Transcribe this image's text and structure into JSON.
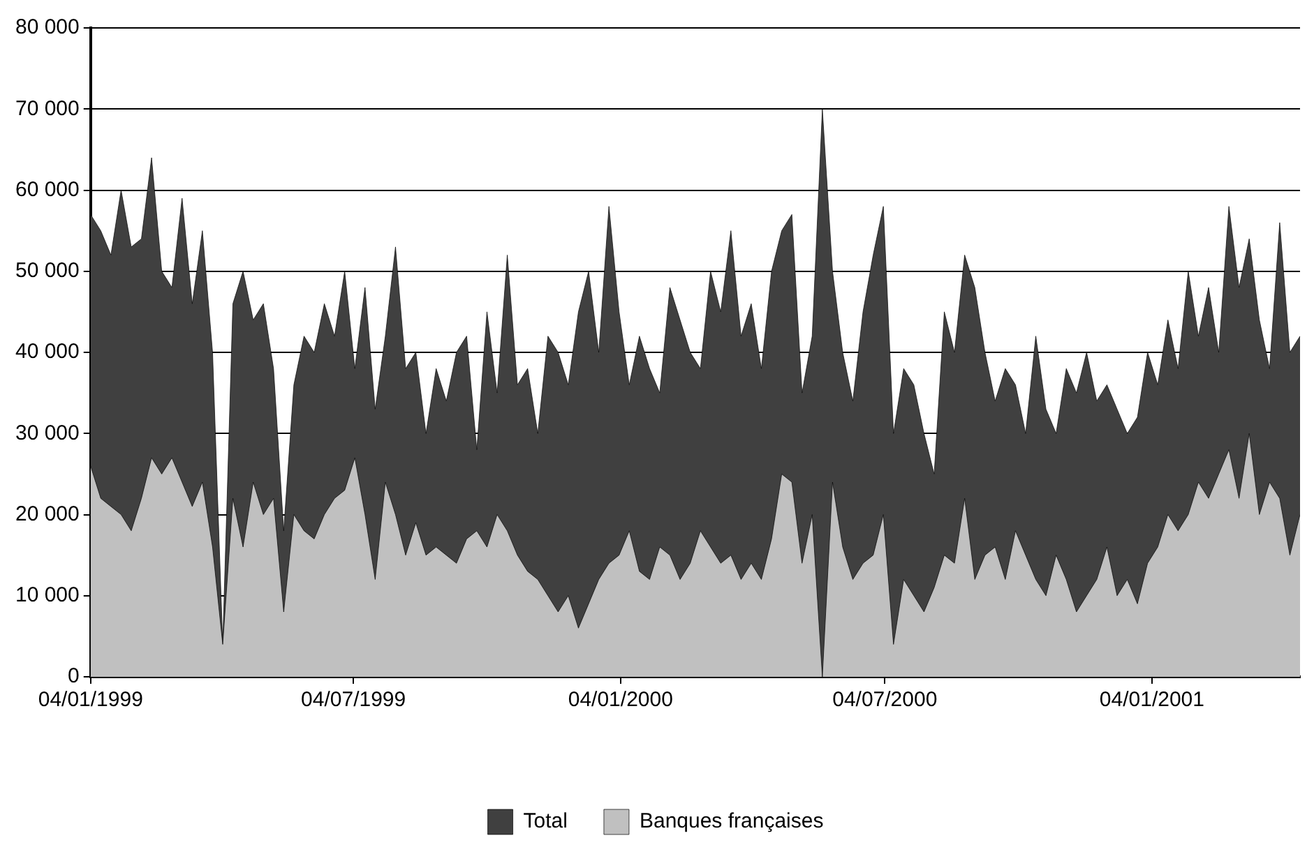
{
  "chart_data": {
    "type": "area",
    "x": [
      "1999-01-04",
      "1999-01-11",
      "1999-01-18",
      "1999-01-25",
      "1999-02-01",
      "1999-02-08",
      "1999-02-15",
      "1999-02-22",
      "1999-03-01",
      "1999-03-08",
      "1999-03-15",
      "1999-03-22",
      "1999-03-29",
      "1999-04-05",
      "1999-04-12",
      "1999-04-19",
      "1999-04-26",
      "1999-05-03",
      "1999-05-10",
      "1999-05-17",
      "1999-05-24",
      "1999-05-31",
      "1999-06-07",
      "1999-06-14",
      "1999-06-21",
      "1999-06-28",
      "1999-07-05",
      "1999-07-12",
      "1999-07-19",
      "1999-07-26",
      "1999-08-02",
      "1999-08-09",
      "1999-08-16",
      "1999-08-23",
      "1999-08-30",
      "1999-09-06",
      "1999-09-13",
      "1999-09-20",
      "1999-09-27",
      "1999-10-04",
      "1999-10-11",
      "1999-10-18",
      "1999-10-25",
      "1999-11-01",
      "1999-11-08",
      "1999-11-15",
      "1999-11-22",
      "1999-11-29",
      "1999-12-06",
      "1999-12-13",
      "1999-12-20",
      "1999-12-27",
      "2000-01-03",
      "2000-01-10",
      "2000-01-17",
      "2000-01-24",
      "2000-01-31",
      "2000-02-07",
      "2000-02-14",
      "2000-02-21",
      "2000-02-28",
      "2000-03-06",
      "2000-03-13",
      "2000-03-20",
      "2000-03-27",
      "2000-04-03",
      "2000-04-10",
      "2000-04-17",
      "2000-04-24",
      "2000-05-01",
      "2000-05-08",
      "2000-05-15",
      "2000-05-22",
      "2000-05-29",
      "2000-06-05",
      "2000-06-12",
      "2000-06-19",
      "2000-06-26",
      "2000-07-03",
      "2000-07-10",
      "2000-07-17",
      "2000-07-24",
      "2000-07-31",
      "2000-08-07",
      "2000-08-14",
      "2000-08-21",
      "2000-08-28",
      "2000-09-04",
      "2000-09-11",
      "2000-09-18",
      "2000-09-25",
      "2000-10-02",
      "2000-10-09",
      "2000-10-16",
      "2000-10-23",
      "2000-10-30",
      "2000-11-06",
      "2000-11-13",
      "2000-11-20",
      "2000-11-27",
      "2000-12-04",
      "2000-12-11",
      "2000-12-18",
      "2000-12-25",
      "2001-01-01",
      "2001-01-08",
      "2001-01-15",
      "2001-01-22",
      "2001-01-29",
      "2001-02-05",
      "2001-02-12",
      "2001-02-19",
      "2001-02-26",
      "2001-03-05",
      "2001-03-12",
      "2001-03-19",
      "2001-03-26",
      "2001-04-02",
      "2001-04-09",
      "2001-04-16"
    ],
    "series": [
      {
        "name": "Total",
        "color": "#404040",
        "values": [
          57000,
          55000,
          52000,
          60000,
          53000,
          54000,
          64000,
          50000,
          48000,
          59000,
          46000,
          55000,
          40000,
          4000,
          46000,
          50000,
          44000,
          46000,
          38000,
          18000,
          36000,
          42000,
          40000,
          46000,
          42000,
          50000,
          38000,
          48000,
          33000,
          42000,
          53000,
          38000,
          40000,
          30000,
          38000,
          34000,
          40000,
          42000,
          28000,
          45000,
          35000,
          52000,
          36000,
          38000,
          30000,
          42000,
          40000,
          36000,
          45000,
          50000,
          40000,
          58000,
          45000,
          36000,
          42000,
          38000,
          35000,
          48000,
          44000,
          40000,
          38000,
          50000,
          45000,
          55000,
          42000,
          46000,
          38000,
          50000,
          55000,
          57000,
          35000,
          42000,
          70000,
          50000,
          40000,
          34000,
          45000,
          52000,
          58000,
          30000,
          38000,
          36000,
          30000,
          25000,
          45000,
          40000,
          52000,
          48000,
          40000,
          34000,
          38000,
          36000,
          30000,
          42000,
          33000,
          30000,
          38000,
          35000,
          40000,
          34000,
          36000,
          33000,
          30000,
          32000,
          40000,
          36000,
          44000,
          38000,
          50000,
          42000,
          48000,
          40000,
          58000,
          48000,
          54000,
          44000,
          38000,
          56000,
          40000,
          42000
        ]
      },
      {
        "name": "Banques françaises",
        "color": "#c0c0c0",
        "values": [
          26000,
          22000,
          21000,
          20000,
          18000,
          22000,
          27000,
          25000,
          27000,
          24000,
          21000,
          24000,
          16000,
          4000,
          22000,
          16000,
          24000,
          20000,
          22000,
          8000,
          20000,
          18000,
          17000,
          20000,
          22000,
          23000,
          27000,
          20000,
          12000,
          24000,
          20000,
          15000,
          19000,
          15000,
          16000,
          15000,
          14000,
          17000,
          18000,
          16000,
          20000,
          18000,
          15000,
          13000,
          12000,
          10000,
          8000,
          10000,
          6000,
          9000,
          12000,
          14000,
          15000,
          18000,
          13000,
          12000,
          16000,
          15000,
          12000,
          14000,
          18000,
          16000,
          14000,
          15000,
          12000,
          14000,
          12000,
          17000,
          25000,
          24000,
          14000,
          20000,
          0,
          24000,
          16000,
          12000,
          14000,
          15000,
          20000,
          4000,
          12000,
          10000,
          8000,
          11000,
          15000,
          14000,
          22000,
          12000,
          15000,
          16000,
          12000,
          18000,
          15000,
          12000,
          10000,
          15000,
          12000,
          8000,
          10000,
          12000,
          16000,
          10000,
          12000,
          9000,
          14000,
          16000,
          20000,
          18000,
          20000,
          24000,
          22000,
          25000,
          28000,
          22000,
          30000,
          20000,
          24000,
          22000,
          15000,
          20000
        ]
      }
    ],
    "xlim": [
      "1999-01-04",
      "2001-04-16"
    ],
    "xticks": [
      {
        "value": "1999-01-04",
        "label": "04/01/1999"
      },
      {
        "value": "1999-07-04",
        "label": "04/07/1999"
      },
      {
        "value": "2000-01-04",
        "label": "04/01/2000"
      },
      {
        "value": "2000-07-04",
        "label": "04/07/2000"
      },
      {
        "value": "2001-01-04",
        "label": "04/01/2001"
      }
    ],
    "ylim": [
      0,
      80000
    ],
    "yticks": [
      0,
      {
        "value": 10000,
        "label": "10 000"
      },
      {
        "value": 20000,
        "label": "20 000"
      },
      {
        "value": 30000,
        "label": "30 000"
      },
      {
        "value": 40000,
        "label": "40 000"
      },
      {
        "value": 50000,
        "label": "50 000"
      },
      {
        "value": 60000,
        "label": "60 000"
      },
      {
        "value": 70000,
        "label": "70 000"
      },
      {
        "value": 80000,
        "label": "80 000"
      }
    ],
    "grid": "y",
    "legend": "bottom"
  }
}
